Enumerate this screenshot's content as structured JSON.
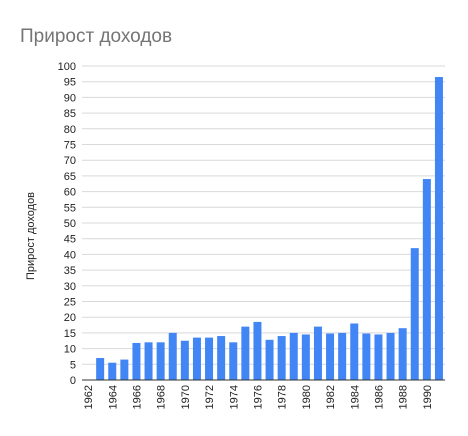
{
  "chart_data": {
    "type": "bar",
    "title": "Прирост доходов",
    "y_label": "Прирост доходов",
    "categories": [
      "1962",
      null,
      "1964",
      null,
      "1966",
      null,
      "1968",
      null,
      "1970",
      null,
      "1972",
      null,
      "1974",
      null,
      "1976",
      null,
      "1978",
      null,
      "1980",
      null,
      "1982",
      null,
      "1984",
      null,
      "1986",
      null,
      "1988",
      null,
      "1990",
      null
    ],
    "values": [
      null,
      7,
      5.5,
      6.5,
      11.8,
      12,
      12,
      15,
      12.5,
      13.5,
      13.5,
      14,
      12,
      17,
      18.5,
      12.8,
      14,
      15,
      14.5,
      17,
      14.8,
      15,
      18,
      14.8,
      14.5,
      15,
      16.5,
      42,
      64,
      96.5
    ],
    "color": "#4285f4",
    "ylim": [
      0,
      100
    ],
    "yticks": [
      0,
      5,
      10,
      15,
      20,
      25,
      30,
      35,
      40,
      45,
      50,
      55,
      60,
      65,
      70,
      75,
      80,
      85,
      90,
      95,
      100
    ],
    "grid": true
  }
}
